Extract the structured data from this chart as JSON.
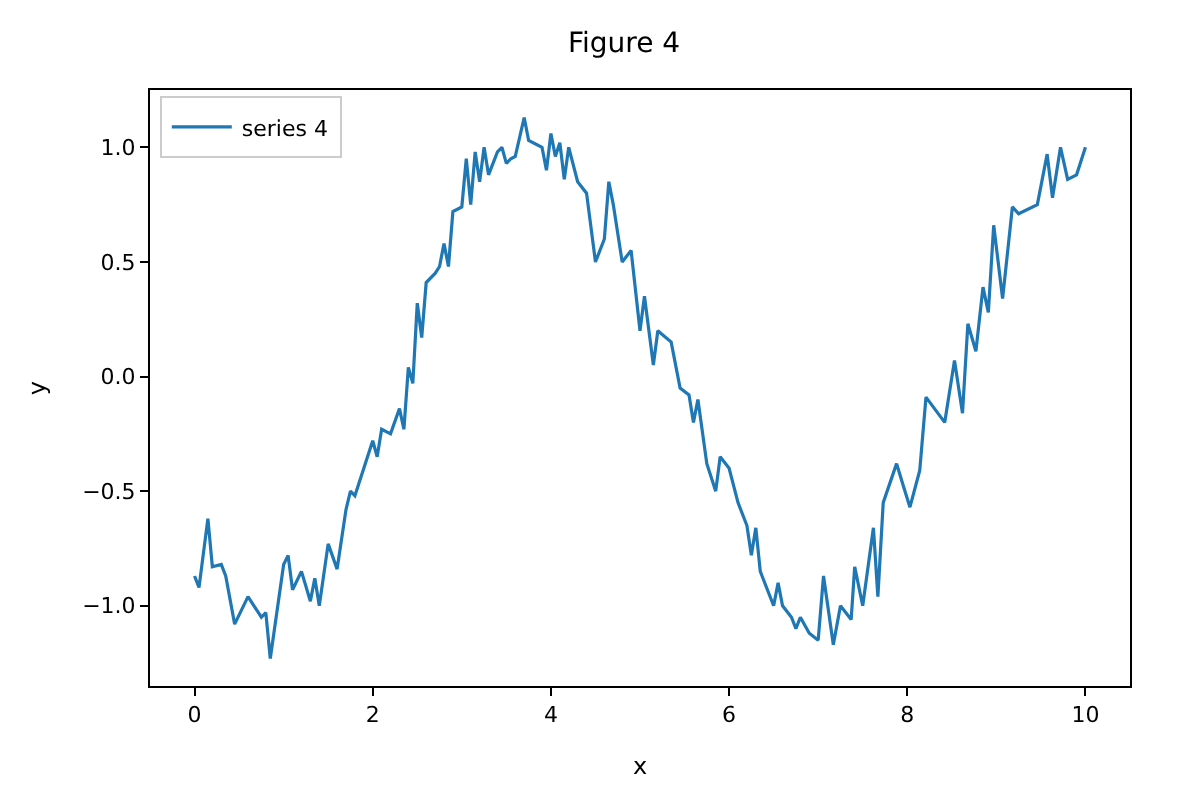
{
  "chart_data": {
    "type": "line",
    "title": "Figure 4",
    "xlabel": "x",
    "ylabel": "y",
    "xlim": [
      -0.5,
      10.5
    ],
    "ylim": [
      -1.35,
      1.25
    ],
    "xticks": [
      0,
      2,
      4,
      6,
      8,
      10
    ],
    "yticks": [
      {
        "value": -1.0,
        "label": "−1.0"
      },
      {
        "value": -0.5,
        "label": "−0.5"
      },
      {
        "value": 0.0,
        "label": "0.0"
      },
      {
        "value": 0.5,
        "label": "0.5"
      },
      {
        "value": 1.0,
        "label": "1.0"
      }
    ],
    "legend": "top left",
    "marker": "none",
    "line_style": "solid",
    "series": [
      {
        "name": "series 4",
        "color": "#1f77b4",
        "x": [
          0,
          0.05,
          0.15,
          0.2,
          0.3,
          0.35,
          0.45,
          0.6,
          0.75,
          0.8,
          0.85,
          1.0,
          1.05,
          1.1,
          1.2,
          1.3,
          1.35,
          1.4,
          1.5,
          1.6,
          1.7,
          1.75,
          1.8,
          1.9,
          2.0,
          2.05,
          2.1,
          2.2,
          2.3,
          2.35,
          2.4,
          2.45,
          2.5,
          2.55,
          2.6,
          2.7,
          2.75,
          2.8,
          2.85,
          2.9,
          3.0,
          3.05,
          3.1,
          3.15,
          3.2,
          3.25,
          3.3,
          3.4,
          3.45,
          3.5,
          3.55,
          3.6,
          3.7,
          3.75,
          3.9,
          3.95,
          4.0,
          4.05,
          4.1,
          4.15,
          4.2,
          4.3,
          4.4,
          4.5,
          4.6,
          4.65,
          4.7,
          4.8,
          4.9,
          5.0,
          5.05,
          5.15,
          5.2,
          5.35,
          5.45,
          5.55,
          5.6,
          5.65,
          5.75,
          5.85,
          5.9,
          6.0,
          6.1,
          6.2,
          6.25,
          6.3,
          6.35,
          6.5,
          6.55,
          6.6,
          6.7,
          6.75,
          6.8,
          6.9,
          7.0,
          7.06,
          7.17,
          7.25,
          7.37,
          7.41,
          7.5,
          7.62,
          7.67,
          7.73,
          7.88,
          7.95,
          8.03,
          8.14,
          8.21,
          8.42,
          8.53,
          8.62,
          8.68,
          8.77,
          8.85,
          8.91,
          8.97,
          9.07,
          9.18,
          9.25,
          9.46,
          9.57,
          9.63,
          9.72,
          9.8,
          9.9,
          10.0
        ],
        "values": [
          -0.87,
          -0.92,
          -0.62,
          -0.83,
          -0.82,
          -0.87,
          -1.08,
          -0.96,
          -1.05,
          -1.03,
          -1.23,
          -0.82,
          -0.78,
          -0.93,
          -0.85,
          -0.98,
          -0.88,
          -1.0,
          -0.73,
          -0.84,
          -0.58,
          -0.5,
          -0.52,
          -0.4,
          -0.28,
          -0.35,
          -0.23,
          -0.25,
          -0.14,
          -0.23,
          0.04,
          -0.03,
          0.32,
          0.17,
          0.41,
          0.45,
          0.48,
          0.58,
          0.48,
          0.72,
          0.74,
          0.95,
          0.75,
          0.98,
          0.85,
          1.0,
          0.88,
          0.98,
          1.0,
          0.93,
          0.95,
          0.96,
          1.13,
          1.03,
          1.0,
          0.9,
          1.06,
          0.96,
          1.02,
          0.86,
          1.0,
          0.85,
          0.8,
          0.5,
          0.6,
          0.85,
          0.75,
          0.5,
          0.55,
          0.2,
          0.35,
          0.05,
          0.2,
          0.15,
          -0.05,
          -0.08,
          -0.2,
          -0.1,
          -0.38,
          -0.5,
          -0.35,
          -0.4,
          -0.55,
          -0.65,
          -0.78,
          -0.66,
          -0.85,
          -1.0,
          -0.9,
          -1.0,
          -1.05,
          -1.1,
          -1.05,
          -1.12,
          -1.15,
          -0.87,
          -1.17,
          -1.0,
          -1.06,
          -0.83,
          -1.0,
          -0.66,
          -0.96,
          -0.55,
          -0.38,
          -0.47,
          -0.57,
          -0.41,
          -0.09,
          -0.2,
          0.07,
          -0.16,
          0.23,
          0.11,
          0.39,
          0.28,
          0.66,
          0.34,
          0.74,
          0.71,
          0.75,
          0.97,
          0.78,
          1.0,
          0.86,
          0.88,
          1.0
        ]
      }
    ]
  }
}
